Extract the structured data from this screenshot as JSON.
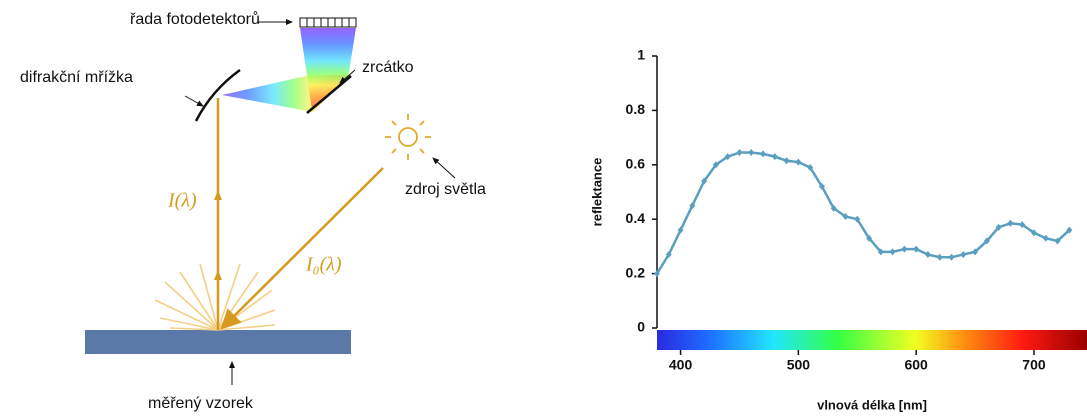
{
  "diagram": {
    "labels": {
      "detectors": "řada fotodetektorů",
      "grating": "difrakční mřížka",
      "mirror": "zrcátko",
      "source": "zdroj světla",
      "reflected": "I(λ)",
      "incident": "I₀(λ)",
      "sample": "měřený vzorek"
    }
  },
  "chart_data": {
    "type": "line",
    "y_label": "reflektance",
    "x_label": "vlnová délka [nm]",
    "x": [
      380,
      390,
      400,
      410,
      420,
      430,
      440,
      450,
      460,
      470,
      480,
      490,
      500,
      510,
      520,
      530,
      540,
      550,
      560,
      570,
      580,
      590,
      600,
      610,
      620,
      630,
      640,
      650,
      660,
      670,
      680,
      690,
      700,
      710,
      720,
      730
    ],
    "series": [
      {
        "name": "reflektance",
        "color": "#5b9fc0",
        "values": [
          0.2,
          0.27,
          0.36,
          0.45,
          0.54,
          0.6,
          0.63,
          0.645,
          0.645,
          0.64,
          0.63,
          0.615,
          0.61,
          0.59,
          0.52,
          0.44,
          0.41,
          0.4,
          0.33,
          0.28,
          0.28,
          0.29,
          0.29,
          0.27,
          0.26,
          0.26,
          0.27,
          0.28,
          0.32,
          0.37,
          0.385,
          0.38,
          0.35,
          0.33,
          0.32,
          0.36
        ]
      }
    ],
    "xlim": [
      380,
      745
    ],
    "ylim": [
      0,
      1
    ],
    "xticks": [
      400,
      500,
      600,
      700
    ],
    "yticks": [
      0,
      0.2,
      0.4,
      0.6,
      0.8,
      1
    ],
    "spectrum_bar": true
  }
}
